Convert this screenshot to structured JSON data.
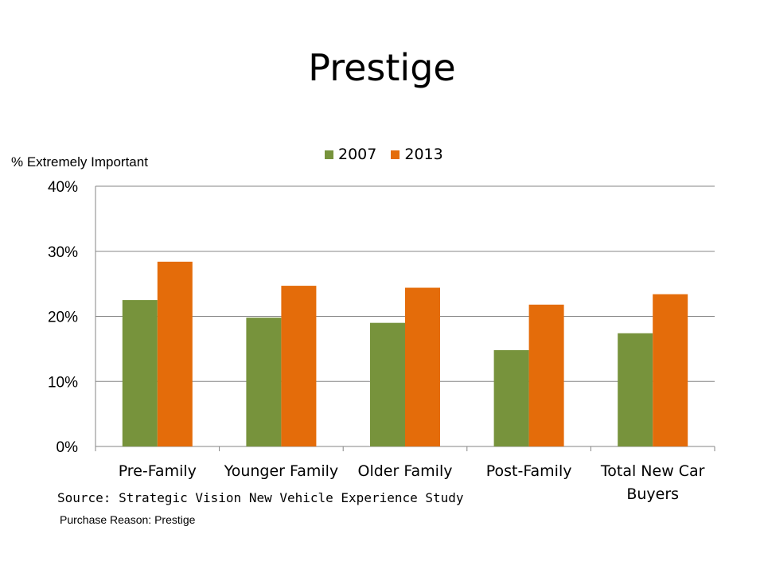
{
  "page": {
    "title": "Prestige"
  },
  "footer": {
    "source": "Source: Strategic Vision New Vehicle Experience Study",
    "note": "Purchase Reason: Prestige"
  },
  "chart_data": {
    "type": "bar",
    "title": "Prestige",
    "ylabel": "% Extremely Important",
    "xlabel": "",
    "categories": [
      "Pre-Family",
      "Younger Family",
      "Older  Family",
      "Post-Family",
      "Total New Car Buyers"
    ],
    "series": [
      {
        "name": "2007",
        "color": "#77933c",
        "values": [
          22.5,
          19.8,
          19.0,
          14.8,
          17.4
        ]
      },
      {
        "name": "2013",
        "color": "#e46c0a",
        "values": [
          28.4,
          24.7,
          24.4,
          21.8,
          23.4
        ]
      }
    ],
    "ylim": [
      0,
      40
    ],
    "yticks": [
      "0%",
      "10%",
      "20%",
      "30%",
      "40%"
    ],
    "grid": true,
    "legend_position": "top"
  }
}
